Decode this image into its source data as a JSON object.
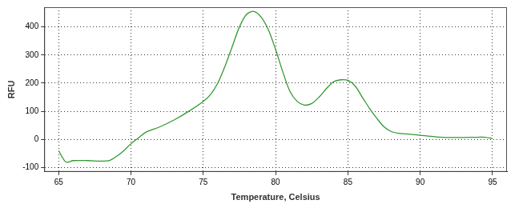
{
  "chart_data": {
    "type": "line",
    "x_label": "Temperature, Celsius",
    "y_label": "RFU",
    "x": [
      65,
      65.5,
      66,
      67,
      68,
      68.5,
      69,
      69.5,
      70,
      70.5,
      71,
      72,
      73,
      74,
      75,
      75.5,
      76,
      76.5,
      77,
      77.5,
      78,
      78.5,
      79,
      79.5,
      80,
      80.5,
      81,
      81.5,
      82,
      82.5,
      83,
      83.5,
      84,
      84.5,
      85,
      85.5,
      86,
      86.5,
      87,
      87.5,
      88,
      88.5,
      89,
      90,
      91,
      92,
      93,
      94,
      94.5,
      95
    ],
    "values": [
      -40,
      -80,
      -75,
      -75,
      -77,
      -75,
      -60,
      -40,
      -15,
      5,
      25,
      45,
      70,
      100,
      135,
      160,
      200,
      260,
      330,
      400,
      445,
      455,
      435,
      390,
      320,
      240,
      170,
      135,
      122,
      128,
      150,
      180,
      205,
      212,
      210,
      190,
      150,
      110,
      75,
      45,
      28,
      22,
      20,
      15,
      10,
      7,
      7,
      8,
      8,
      3
    ],
    "color": "#339933",
    "marker": "none",
    "line_style": "solid",
    "xlim": [
      64,
      96
    ],
    "ylim": [
      -115,
      470
    ],
    "xticks": [
      65,
      70,
      75,
      80,
      85,
      90,
      95
    ],
    "yticks": [
      -100,
      0,
      100,
      200,
      300,
      400
    ],
    "grid": true
  }
}
